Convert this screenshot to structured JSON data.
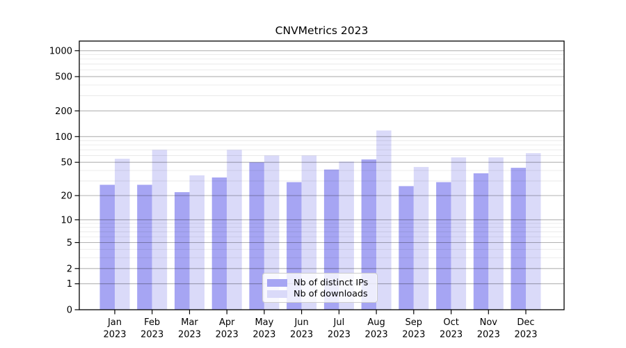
{
  "figure": {
    "title": "CNVMetrics 2023",
    "background": "#ffffff"
  },
  "chart_data": {
    "type": "bar",
    "title": "CNVMetrics 2023",
    "categories": [
      "Jan",
      "Feb",
      "Mar",
      "Apr",
      "May",
      "Jun",
      "Jul",
      "Aug",
      "Sep",
      "Oct",
      "Nov",
      "Dec"
    ],
    "category_year": "2023",
    "series": [
      {
        "name": "Nb of distinct IPs",
        "color": "#a6a5f3",
        "values": [
          27,
          27,
          22,
          33,
          50,
          29,
          41,
          54,
          26,
          29,
          37,
          43
        ]
      },
      {
        "name": "Nb of downloads",
        "color": "#dadaf9",
        "values": [
          55,
          70,
          35,
          70,
          60,
          60,
          51,
          118,
          44,
          57,
          57,
          64
        ]
      }
    ],
    "xlabel": "",
    "ylabel": "",
    "yscale": "log10(value+1)",
    "ylim": [
      0,
      1300
    ],
    "yticks": [
      0,
      1,
      2,
      5,
      10,
      20,
      50,
      100,
      200,
      500,
      1000
    ],
    "ytick_labels": [
      "0",
      "1",
      "2",
      "5",
      "10",
      "20",
      "50",
      "100",
      "200",
      "500",
      "1000"
    ],
    "minor_yticks": [
      3,
      4,
      6,
      7,
      8,
      9,
      30,
      40,
      60,
      70,
      80,
      90,
      300,
      400,
      600,
      700,
      800,
      900
    ],
    "grid": {
      "major_color": "#b0b0b0",
      "minor_color": "#e9e9e9",
      "drawn_over_bars": true
    },
    "legend_position": "lower center"
  }
}
